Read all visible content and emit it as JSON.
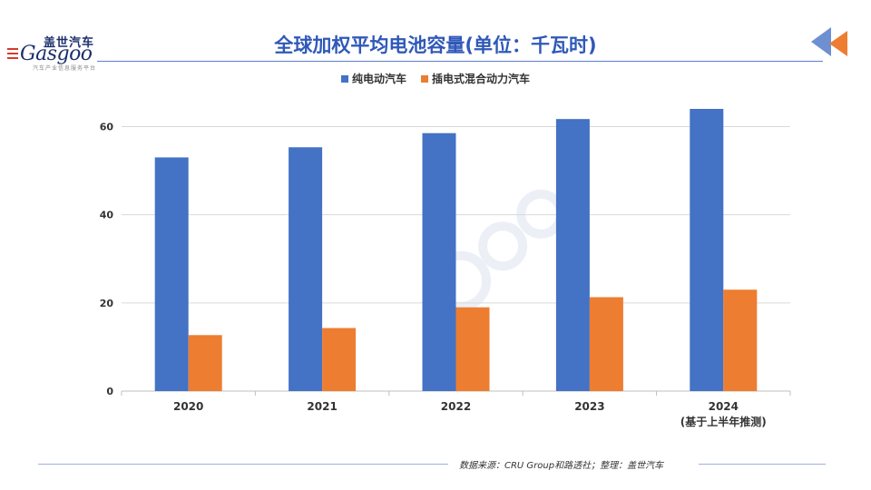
{
  "header": {
    "logo_cn": "盖世汽车",
    "logo_en": "Gasgoo",
    "logo_sub": "汽车产业信息服务平台",
    "title": "全球加权平均电池容量(单位：千瓦时)"
  },
  "footer": {
    "source": "数据来源：CRU Group和路透社；整理：盖世汽车"
  },
  "colors": {
    "accent": "#2f58b8",
    "bev": "#4472c4",
    "phev": "#ed7d31",
    "arrow_blue": "#6e8fd0",
    "arrow_orange": "#ed7d31"
  },
  "chart_data": {
    "type": "bar",
    "title": "全球加权平均电池容量(单位：千瓦时)",
    "categories": [
      "2020",
      "2021",
      "2022",
      "2023",
      "2024\n(基于上半年推测)"
    ],
    "category_lines": [
      [
        "2020"
      ],
      [
        "2021"
      ],
      [
        "2022"
      ],
      [
        "2023"
      ],
      [
        "2024",
        "(基于上半年推测)"
      ]
    ],
    "series": [
      {
        "name": "纯电动汽车",
        "color": "#4472c4",
        "values": [
          53.0,
          55.3,
          58.5,
          61.7,
          64.0
        ]
      },
      {
        "name": "插电式混合动力汽车",
        "color": "#ed7d31",
        "values": [
          12.7,
          14.3,
          19.0,
          21.3,
          23.0
        ]
      }
    ],
    "yticks": [
      0,
      20,
      40,
      60
    ],
    "ylim": [
      0,
      64
    ],
    "xlabel": "",
    "ylabel": "",
    "grid": true,
    "legend_position": "top"
  }
}
